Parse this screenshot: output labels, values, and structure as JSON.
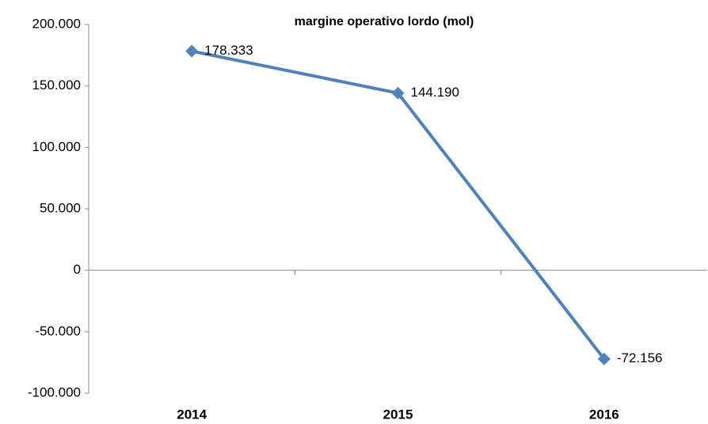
{
  "chart_data": {
    "type": "line",
    "title": "margine operativo lordo (mol)",
    "categories": [
      "2014",
      "2015",
      "2016"
    ],
    "series": [
      {
        "name": "mol",
        "color": "#4f81bd",
        "values": [
          178333,
          144190,
          -72156
        ],
        "value_labels": [
          "178.333",
          "144.190",
          "-72.156"
        ]
      }
    ],
    "ylim": [
      -100000,
      200000
    ],
    "yticks": [
      {
        "value": -100000,
        "label": "-100.000"
      },
      {
        "value": -50000,
        "label": "-50.000"
      },
      0,
      {
        "value": 50000,
        "label": "50.000"
      },
      {
        "value": 100000,
        "label": "100.000"
      },
      {
        "value": 150000,
        "label": "150.000"
      },
      {
        "value": 200000,
        "label": "200.000"
      }
    ],
    "grid": false
  }
}
